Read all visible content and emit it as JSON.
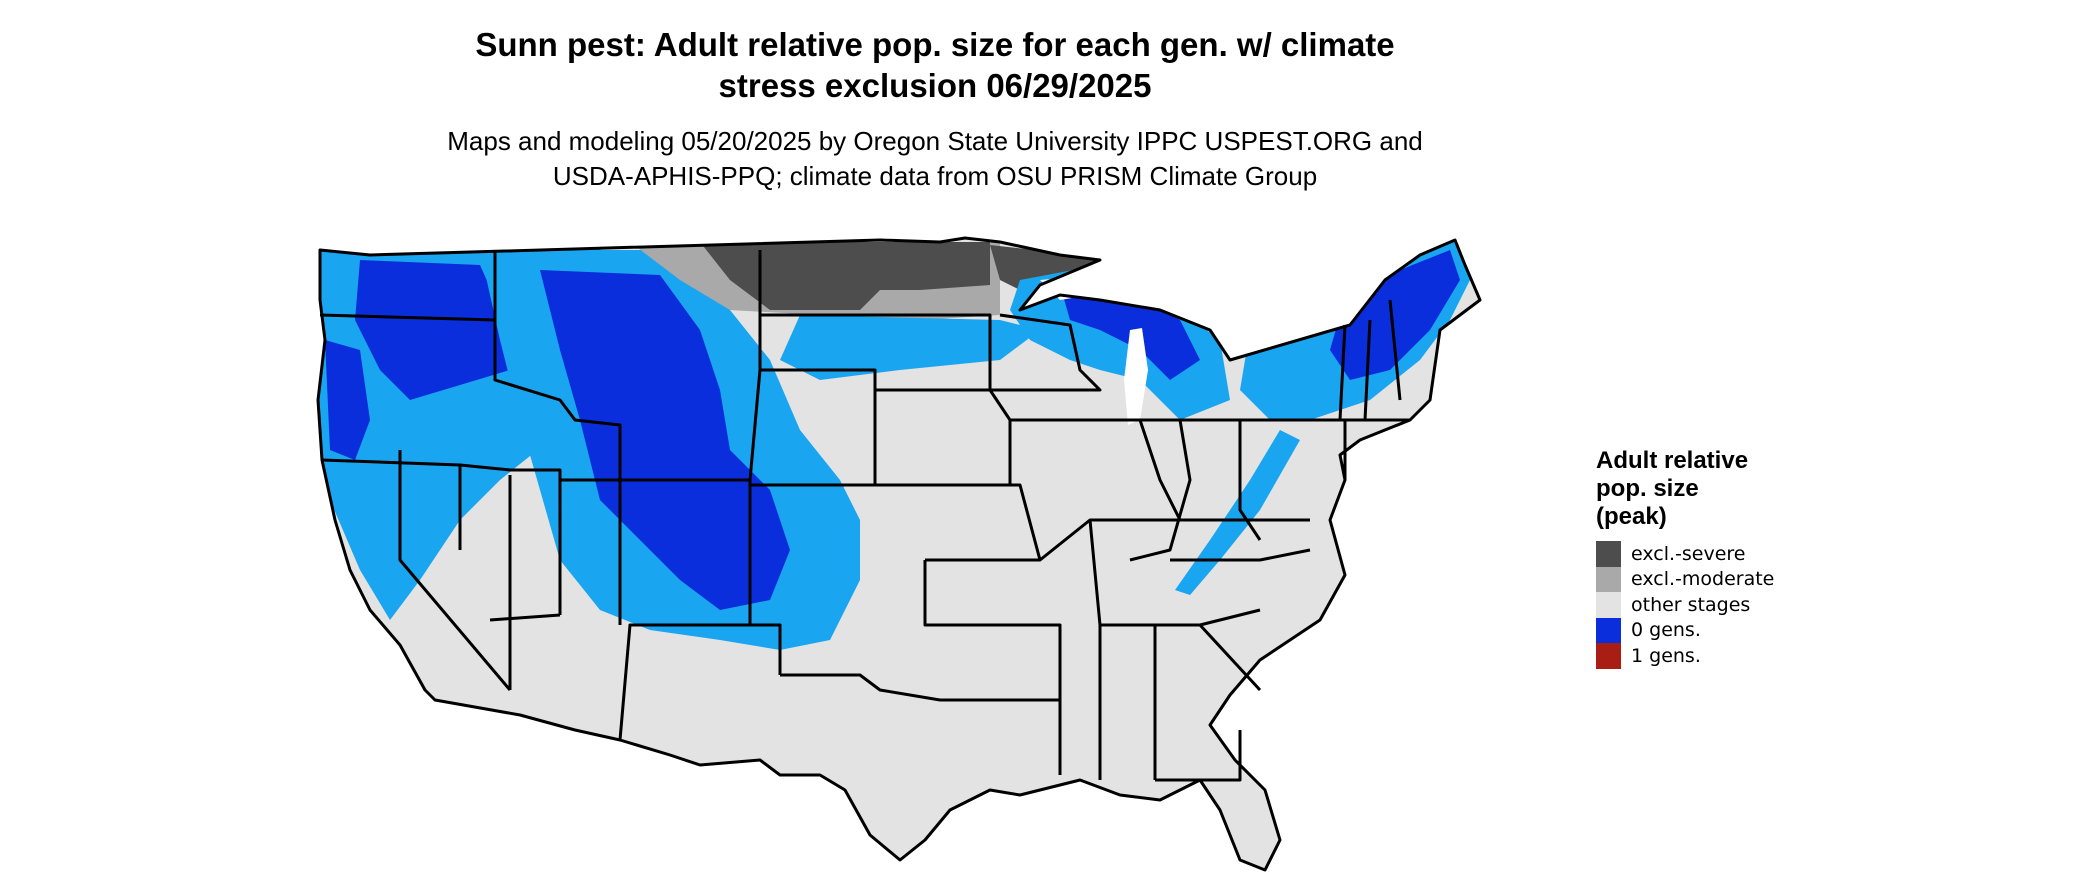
{
  "title_line1": "Sunn pest: Adult relative pop. size for each gen. w/ climate",
  "title_line2": "stress exclusion 06/29/2025",
  "subtitle_line1": "Maps and modeling 05/20/2025 by Oregon State University IPPC USPEST.ORG and",
  "subtitle_line2": "USDA-APHIS-PPQ; climate data from OSU PRISM Climate Group",
  "legend": {
    "title_line1": "Adult relative",
    "title_line2": "pop. size",
    "title_line3": "(peak)",
    "items": [
      {
        "label": "excl.-severe",
        "color": "#4d4d4d"
      },
      {
        "label": "excl.-moderate",
        "color": "#a9a9a9"
      },
      {
        "label": "other stages",
        "color": "#e3e3e3"
      },
      {
        "label": "0 gens.",
        "color": "#0a2edb"
      },
      {
        "label": "1 gens.",
        "color": "#a81e14"
      }
    ]
  },
  "colors": {
    "land": "#e3e3e3",
    "excl_severe": "#4d4d4d",
    "excl_moderate": "#a9a9a9",
    "gens0_dark": "#0a2edb",
    "gens0_light": "#1aa5f0",
    "border": "#000000"
  }
}
